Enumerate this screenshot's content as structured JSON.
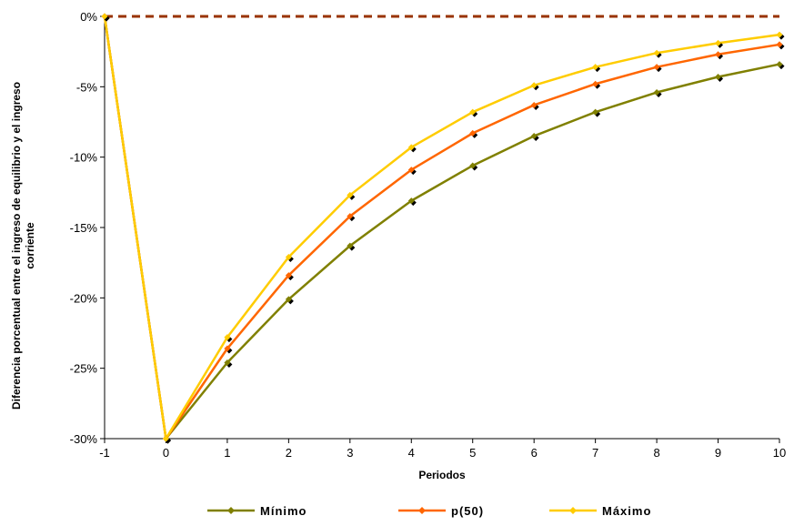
{
  "chart_data": {
    "type": "line",
    "xlabel": "Periodos",
    "ylabel_lines": [
      "Diferencia porcentual entre el ingreso de equilibrio y el ingreso",
      "corriente"
    ],
    "x": [
      -1,
      0,
      1,
      2,
      3,
      4,
      5,
      6,
      7,
      8,
      9,
      10
    ],
    "x_tick_labels": [
      "-1",
      "0",
      "1",
      "2",
      "3",
      "4",
      "5",
      "6",
      "7",
      "8",
      "9",
      "10"
    ],
    "xlim": [
      -1,
      10
    ],
    "ylim": [
      -30,
      0
    ],
    "y_ticks": [
      0,
      -5,
      -10,
      -15,
      -20,
      -25,
      -30
    ],
    "y_tick_labels": [
      "0%",
      "-5%",
      "-10%",
      "-15%",
      "-20%",
      "-25%",
      "-30%"
    ],
    "reference_line": {
      "y": 0,
      "color": "#993300",
      "style": "dashed"
    },
    "series": [
      {
        "name": "Mínimo",
        "color": "#808000",
        "values": [
          0,
          -30,
          -24.6,
          -20.1,
          -16.3,
          -13.1,
          -10.6,
          -8.5,
          -6.8,
          -5.4,
          -4.3,
          -3.4
        ]
      },
      {
        "name": "p(50)",
        "color": "#ff6600",
        "values": [
          0,
          -30,
          -23.6,
          -18.4,
          -14.2,
          -10.9,
          -8.3,
          -6.3,
          -4.8,
          -3.6,
          -2.7,
          -2.0
        ]
      },
      {
        "name": "Máximo",
        "color": "#ffcc00",
        "values": [
          0,
          -30,
          -22.8,
          -17.1,
          -12.7,
          -9.3,
          -6.8,
          -4.9,
          -3.6,
          -2.6,
          -1.9,
          -1.3
        ]
      }
    ],
    "marker_color": "#000000",
    "legend_position": "bottom"
  }
}
